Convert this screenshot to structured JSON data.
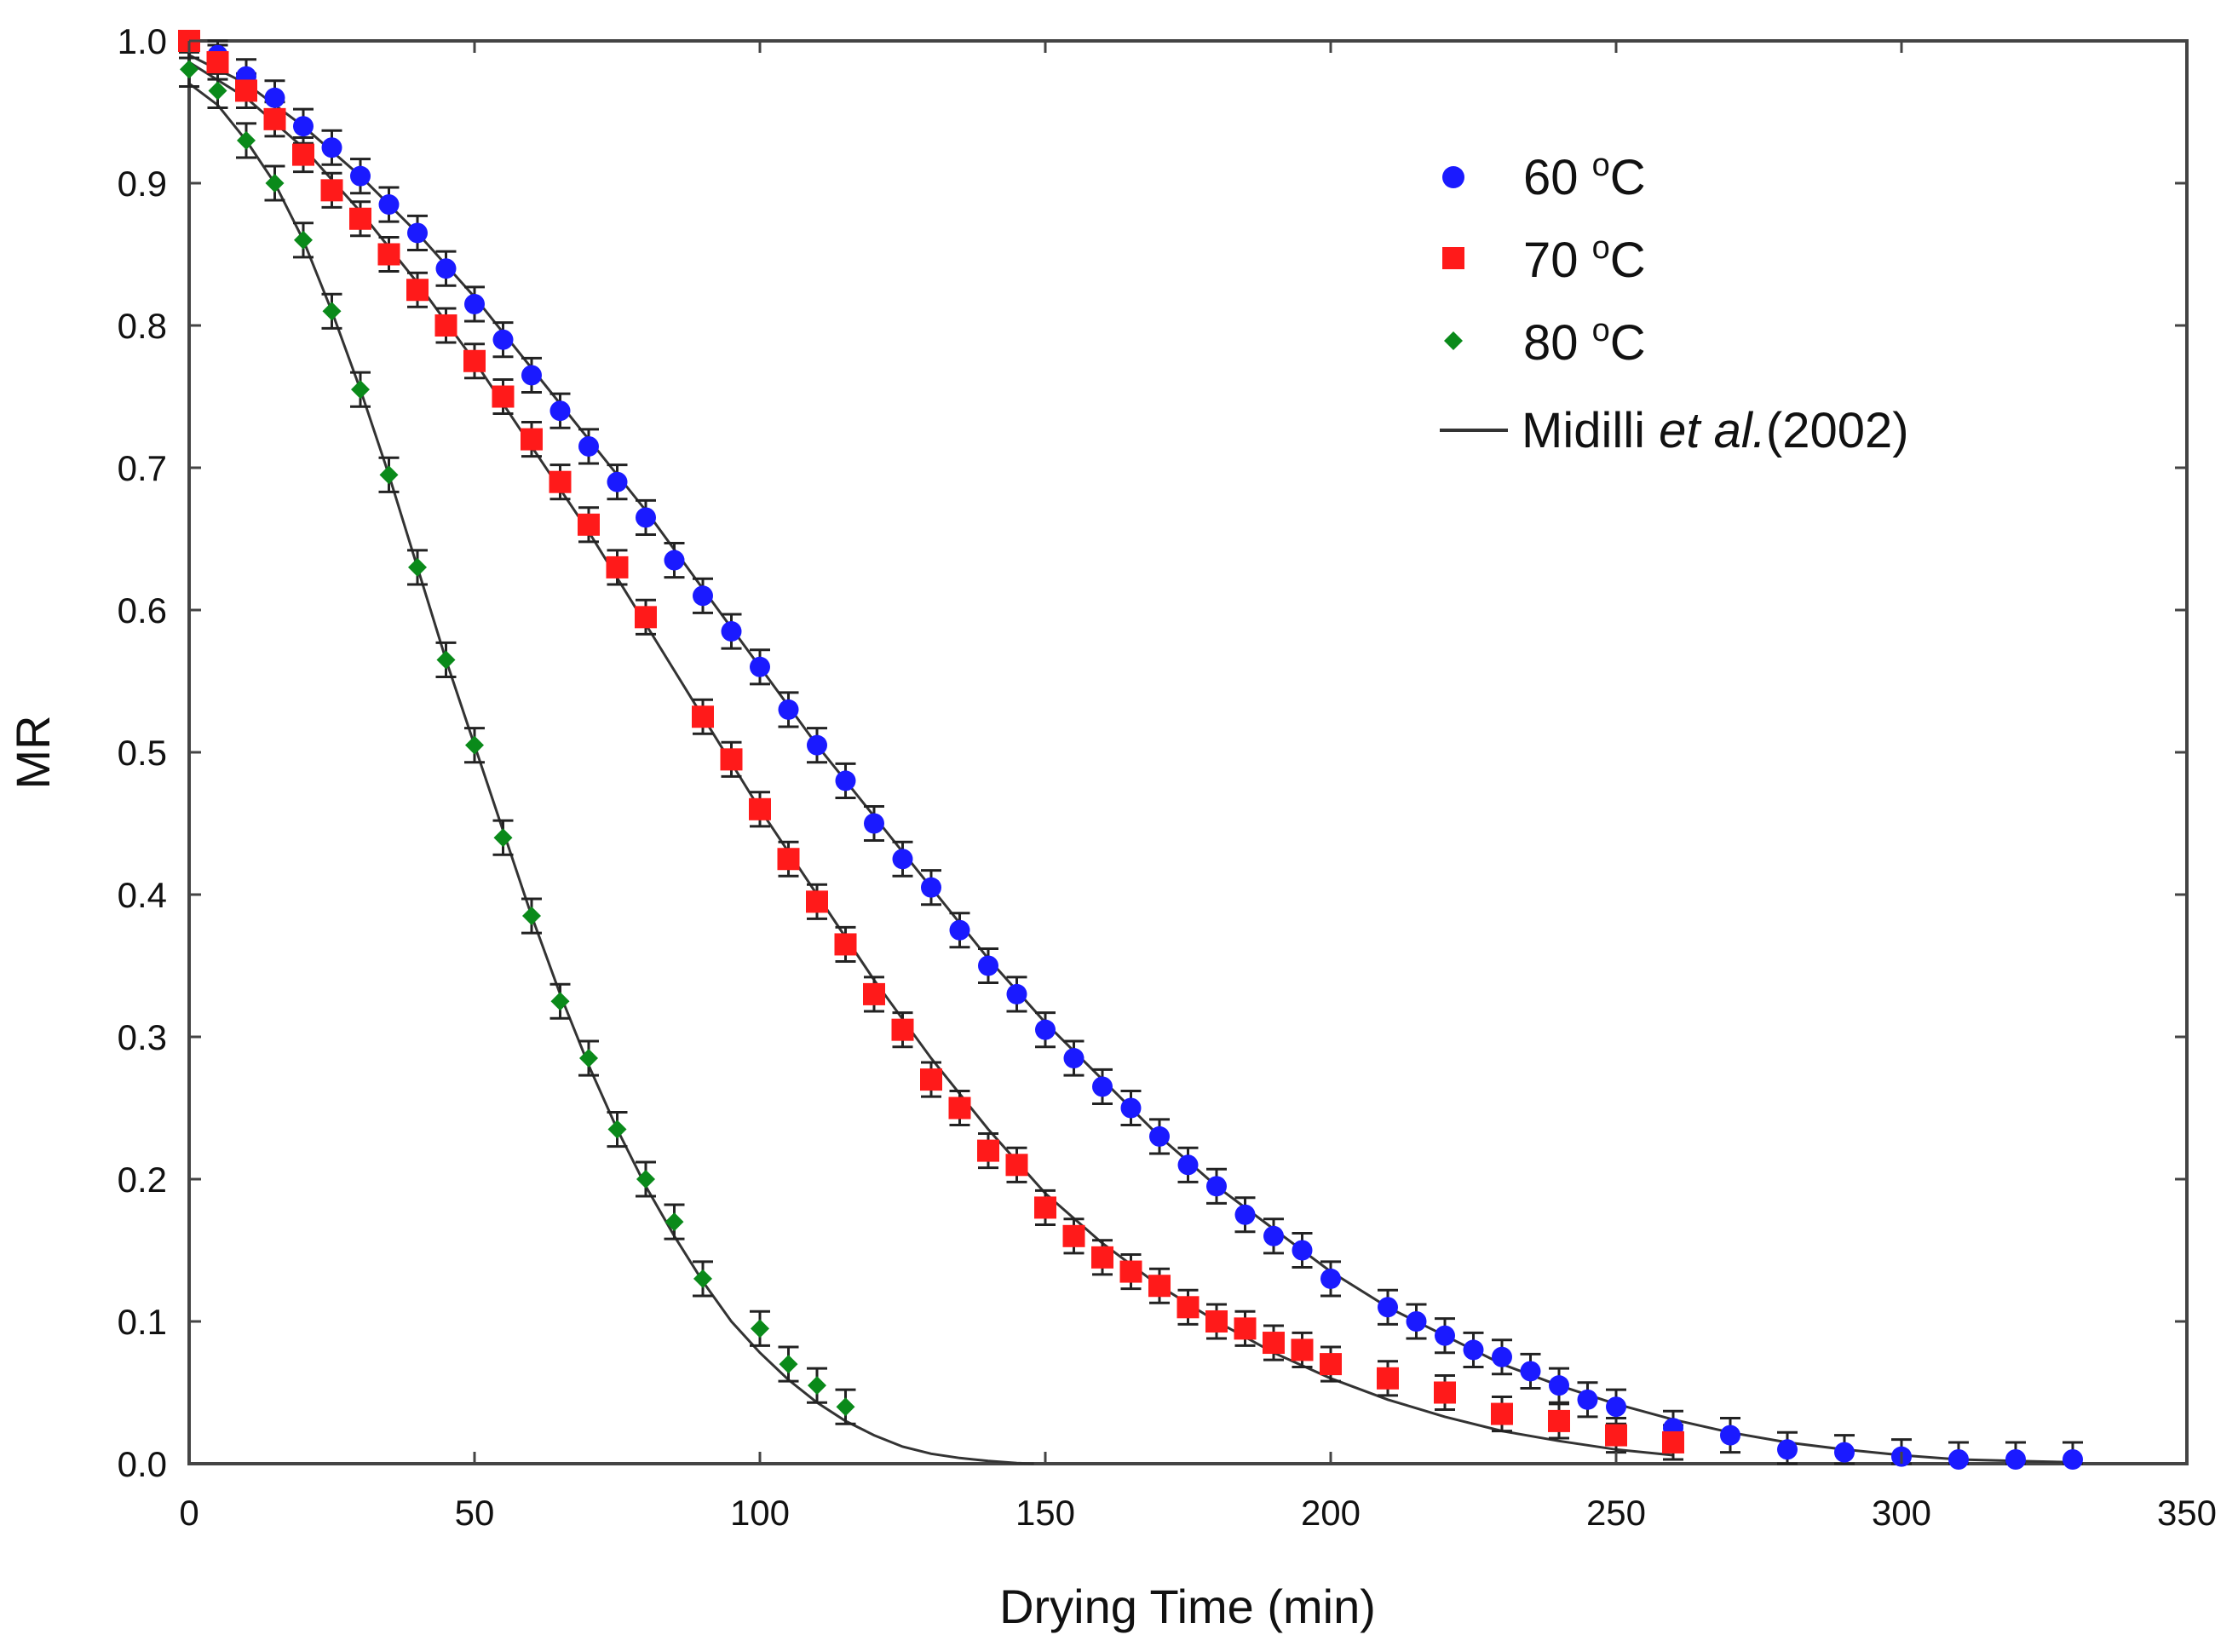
{
  "chart_data": {
    "type": "scatter",
    "title": "",
    "xlabel": "Drying Time  (min)",
    "ylabel": "MR",
    "xlim": [
      0,
      350
    ],
    "ylim": [
      0,
      1.0
    ],
    "xticks": [
      "0",
      "50",
      "100",
      "150",
      "200",
      "250",
      "300",
      "350"
    ],
    "yticks": [
      "0.0",
      "0.1",
      "0.2",
      "0.3",
      "0.4",
      "0.5",
      "0.6",
      "0.7",
      "0.8",
      "0.9",
      "1.0"
    ],
    "error_bar_half_width": 0.012,
    "legend": {
      "position": "top-right",
      "entries": [
        {
          "label": "60 °C",
          "marker": "circle",
          "color": "#1a1aff"
        },
        {
          "label": "70 °C",
          "marker": "square",
          "color": "#ff1a1a"
        },
        {
          "label": "80 °C",
          "marker": "diamond",
          "color": "#0a8a1a"
        },
        {
          "label": "Midilli et al.(2002)",
          "marker": "line",
          "color": "#333333"
        }
      ]
    },
    "series": [
      {
        "name": "60 °C",
        "color": "#1a1aff",
        "marker": "circle",
        "x": [
          0,
          5,
          10,
          15,
          20,
          25,
          30,
          35,
          40,
          45,
          50,
          55,
          60,
          65,
          70,
          75,
          80,
          85,
          90,
          95,
          100,
          105,
          110,
          115,
          120,
          125,
          130,
          135,
          140,
          145,
          150,
          155,
          160,
          165,
          170,
          175,
          180,
          185,
          190,
          195,
          200,
          210,
          215,
          220,
          225,
          230,
          235,
          240,
          245,
          250,
          260,
          270,
          280,
          290,
          300,
          310,
          320,
          330
        ],
        "y": [
          1.0,
          0.99,
          0.975,
          0.96,
          0.94,
          0.925,
          0.905,
          0.885,
          0.865,
          0.84,
          0.815,
          0.79,
          0.765,
          0.74,
          0.715,
          0.69,
          0.665,
          0.635,
          0.61,
          0.585,
          0.56,
          0.53,
          0.505,
          0.48,
          0.45,
          0.425,
          0.405,
          0.375,
          0.35,
          0.33,
          0.305,
          0.285,
          0.265,
          0.25,
          0.23,
          0.21,
          0.195,
          0.175,
          0.16,
          0.15,
          0.13,
          0.11,
          0.1,
          0.09,
          0.08,
          0.075,
          0.065,
          0.055,
          0.045,
          0.04,
          0.025,
          0.02,
          0.01,
          0.008,
          0.005,
          0.003,
          0.003,
          0.003
        ]
      },
      {
        "name": "70 °C",
        "color": "#ff1a1a",
        "marker": "square",
        "x": [
          0,
          5,
          10,
          15,
          20,
          25,
          30,
          35,
          40,
          45,
          50,
          55,
          60,
          65,
          70,
          75,
          80,
          90,
          95,
          100,
          105,
          110,
          115,
          120,
          125,
          130,
          135,
          140,
          145,
          150,
          155,
          160,
          165,
          170,
          175,
          180,
          185,
          190,
          195,
          200,
          210,
          220,
          230,
          240,
          250,
          260
        ],
        "y": [
          1.0,
          0.985,
          0.965,
          0.945,
          0.92,
          0.895,
          0.875,
          0.85,
          0.825,
          0.8,
          0.775,
          0.75,
          0.72,
          0.69,
          0.66,
          0.63,
          0.595,
          0.525,
          0.495,
          0.46,
          0.425,
          0.395,
          0.365,
          0.33,
          0.305,
          0.27,
          0.25,
          0.22,
          0.21,
          0.18,
          0.16,
          0.145,
          0.135,
          0.125,
          0.11,
          0.1,
          0.095,
          0.085,
          0.08,
          0.07,
          0.06,
          0.05,
          0.035,
          0.03,
          0.02,
          0.015
        ]
      },
      {
        "name": "80 °C",
        "color": "#0a8a1a",
        "marker": "diamond",
        "x": [
          0,
          5,
          10,
          15,
          20,
          25,
          30,
          35,
          40,
          45,
          50,
          55,
          60,
          65,
          70,
          75,
          80,
          85,
          90,
          100,
          105,
          110,
          115
        ],
        "y": [
          0.98,
          0.965,
          0.93,
          0.9,
          0.86,
          0.81,
          0.755,
          0.695,
          0.63,
          0.565,
          0.505,
          0.44,
          0.385,
          0.325,
          0.285,
          0.235,
          0.2,
          0.17,
          0.13,
          0.095,
          0.07,
          0.055,
          0.04
        ]
      }
    ],
    "fit_curves": [
      {
        "name": "Midilli et al.(2002) 60 °C",
        "x": [
          0,
          10,
          20,
          30,
          40,
          50,
          60,
          70,
          80,
          90,
          100,
          110,
          120,
          130,
          140,
          150,
          160,
          170,
          180,
          190,
          200,
          210,
          220,
          230,
          240,
          250,
          260,
          270,
          280,
          290,
          300,
          310,
          320,
          330
        ],
        "y": [
          0.99,
          0.97,
          0.94,
          0.905,
          0.865,
          0.82,
          0.77,
          0.72,
          0.67,
          0.615,
          0.56,
          0.505,
          0.455,
          0.405,
          0.355,
          0.31,
          0.27,
          0.23,
          0.195,
          0.165,
          0.135,
          0.11,
          0.09,
          0.07,
          0.055,
          0.042,
          0.031,
          0.022,
          0.015,
          0.01,
          0.006,
          0.003,
          0.002,
          0.001
        ]
      },
      {
        "name": "Midilli et al.(2002) 70 °C",
        "x": [
          0,
          10,
          20,
          30,
          40,
          50,
          60,
          70,
          80,
          90,
          100,
          110,
          120,
          130,
          140,
          150,
          160,
          170,
          180,
          190,
          200,
          210,
          220,
          230,
          240,
          250,
          260
        ],
        "y": [
          0.985,
          0.96,
          0.925,
          0.88,
          0.83,
          0.775,
          0.715,
          0.655,
          0.59,
          0.525,
          0.46,
          0.4,
          0.34,
          0.285,
          0.235,
          0.19,
          0.155,
          0.125,
          0.1,
          0.078,
          0.06,
          0.045,
          0.033,
          0.023,
          0.016,
          0.01,
          0.006
        ]
      },
      {
        "name": "Midilli et al.(2002) 80 °C",
        "x": [
          0,
          5,
          10,
          15,
          20,
          25,
          30,
          35,
          40,
          45,
          50,
          55,
          60,
          65,
          70,
          75,
          80,
          85,
          90,
          95,
          100,
          105,
          110,
          115,
          120,
          125,
          130,
          135,
          140,
          145,
          148
        ],
        "y": [
          0.97,
          0.955,
          0.93,
          0.9,
          0.86,
          0.81,
          0.755,
          0.695,
          0.63,
          0.565,
          0.505,
          0.445,
          0.385,
          0.33,
          0.28,
          0.235,
          0.195,
          0.16,
          0.128,
          0.1,
          0.078,
          0.059,
          0.043,
          0.03,
          0.02,
          0.012,
          0.007,
          0.004,
          0.002,
          0.0005,
          0.0
        ]
      }
    ]
  }
}
